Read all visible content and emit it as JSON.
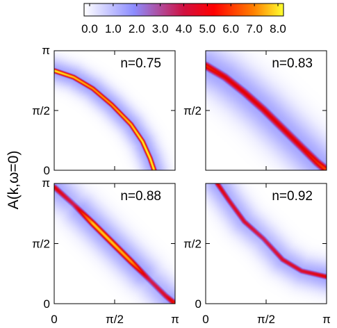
{
  "chart_data": [
    {
      "type": "heatmap",
      "panel": "top-left",
      "label": "n=0.75",
      "xticks": [
        "",
        "",
        ""
      ],
      "yticks": [
        "π",
        "π/2",
        "0"
      ],
      "xlim": [
        0,
        3.1416
      ],
      "ylim": [
        0,
        3.1416
      ],
      "ridge": [
        [
          0.0,
          2.62
        ],
        [
          0.5,
          2.45
        ],
        [
          1.0,
          2.15
        ],
        [
          1.5,
          1.72
        ],
        [
          2.0,
          1.2
        ],
        [
          2.3,
          0.75
        ],
        [
          2.5,
          0.3
        ],
        [
          2.6,
          0.0
        ]
      ],
      "peak_intensity": [
        8.0,
        7.5,
        7.0,
        7.0,
        7.5,
        8.0,
        8.0,
        8.0
      ],
      "width": 0.045
    },
    {
      "type": "heatmap",
      "panel": "top-right",
      "label": "n=0.83",
      "xticks": [
        "",
        "",
        ""
      ],
      "yticks": [
        "",
        "π/2",
        ""
      ],
      "xlim": [
        0,
        3.1416
      ],
      "ylim": [
        0,
        3.1416
      ],
      "ridge": [
        [
          0.0,
          2.75
        ],
        [
          0.5,
          2.45
        ],
        [
          1.0,
          2.05
        ],
        [
          1.5,
          1.6
        ],
        [
          2.0,
          1.1
        ],
        [
          2.5,
          0.6
        ],
        [
          2.9,
          0.2
        ],
        [
          3.1416,
          0.0
        ]
      ],
      "peak_intensity": [
        5.5,
        5.0,
        5.0,
        5.0,
        5.0,
        5.0,
        5.5,
        6.0
      ],
      "width": 0.08
    },
    {
      "type": "heatmap",
      "panel": "bottom-left",
      "label": "n=0.88",
      "xticks": [
        "0",
        "π/2",
        "π"
      ],
      "yticks": [
        "π",
        "π/2",
        "0"
      ],
      "xlim": [
        0,
        3.1416
      ],
      "ylim": [
        0,
        3.1416
      ],
      "ridge": [
        [
          0.0,
          3.05
        ],
        [
          0.5,
          2.6
        ],
        [
          1.0,
          2.1
        ],
        [
          1.5,
          1.6
        ],
        [
          2.0,
          1.1
        ],
        [
          2.5,
          0.6
        ],
        [
          2.9,
          0.2
        ],
        [
          3.1416,
          0.0
        ]
      ],
      "peak_intensity": [
        5.0,
        4.0,
        7.5,
        7.5,
        7.0,
        4.0,
        4.5,
        5.5
      ],
      "width": 0.06
    },
    {
      "type": "heatmap",
      "panel": "bottom-right",
      "label": "n=0.92",
      "xticks": [
        "0",
        "π/2",
        "π"
      ],
      "yticks": [
        "",
        "π/2",
        "0"
      ],
      "xlim": [
        0,
        3.1416
      ],
      "ylim": [
        0,
        3.1416
      ],
      "ridge": [
        [
          0.3,
          3.1416
        ],
        [
          0.6,
          2.7
        ],
        [
          1.0,
          2.15
        ],
        [
          1.5,
          1.7
        ],
        [
          2.0,
          1.15
        ],
        [
          2.5,
          0.85
        ],
        [
          3.1416,
          0.7
        ]
      ],
      "peak_intensity": [
        5.0,
        4.5,
        4.5,
        4.0,
        4.5,
        4.5,
        5.0
      ],
      "width": 0.055
    }
  ],
  "ylabel": "A(k,ω=0)",
  "colorbar": {
    "ticks": [
      "0.0",
      "1.0",
      "2.0",
      "3.0",
      "4.0",
      "5.0",
      "6.0",
      "7.0",
      "8.0"
    ],
    "range": [
      0,
      8
    ],
    "colors": [
      "#ffffff",
      "#8080ff",
      "#e80000",
      "#ffff20"
    ]
  }
}
